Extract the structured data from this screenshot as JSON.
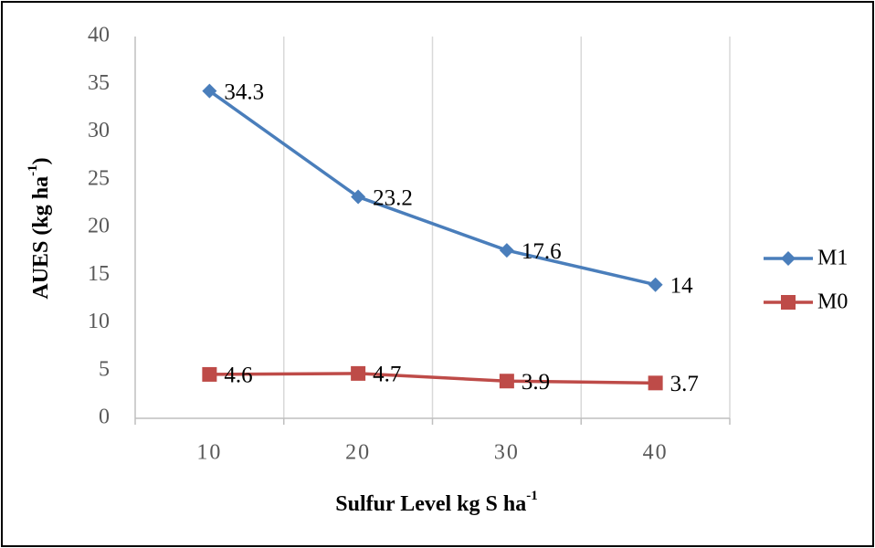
{
  "chart_data": {
    "type": "line",
    "x_label": {
      "text": "Sulfur Level kg S ha",
      "sup": "-1"
    },
    "y_label": {
      "text": "AUES (kg ha",
      "sup": "-1",
      "after": ")"
    },
    "categories": [
      "10",
      "20",
      "30",
      "40"
    ],
    "series": [
      {
        "name": "M1",
        "color": "#4a7ebb",
        "marker": "diamond",
        "values": [
          34.3,
          23.2,
          17.6,
          14
        ]
      },
      {
        "name": "M0",
        "color": "#be4b48",
        "marker": "square",
        "values": [
          4.6,
          4.7,
          3.9,
          3.7
        ]
      }
    ],
    "ylim": [
      0,
      40
    ],
    "yticks": [
      0,
      5,
      10,
      15,
      20,
      25,
      30,
      35,
      40
    ],
    "grid": "x",
    "legend": "right"
  }
}
